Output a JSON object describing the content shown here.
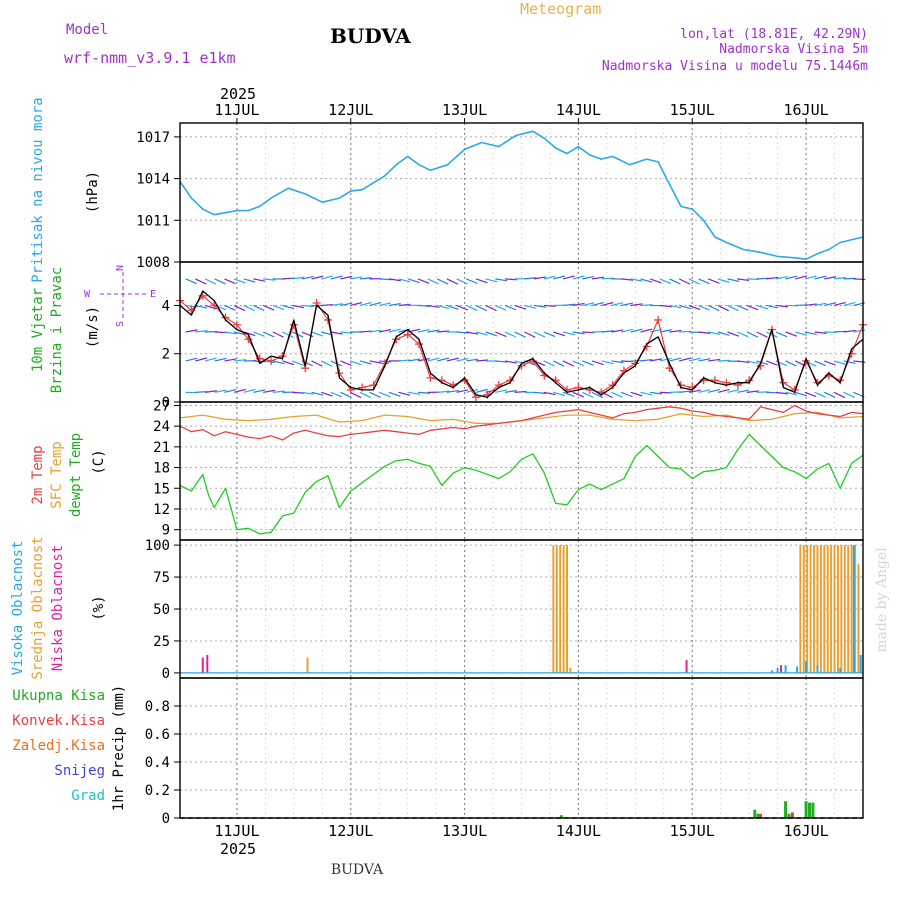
{
  "header": {
    "title": "BUDVA",
    "subtitle": "Meteogram",
    "model_label": "Model",
    "model_name": "wrf-nmm_v3.9.1 e1km",
    "coords": "lon,lat (18.81E, 42.29N)",
    "elevation": "Nadmorska Visina 5m",
    "model_elevation": "Nadmorska Visina u modelu 75.1446m",
    "footer_title": "BUDVA",
    "watermark": "made by Angel"
  },
  "time_axis": {
    "year": "2025",
    "days": [
      "11JUL",
      "12JUL",
      "13JUL",
      "14JUL",
      "15JUL",
      "16JUL"
    ],
    "day_start": [
      10.5,
      11,
      12,
      13,
      14,
      15,
      16,
      16.5
    ]
  },
  "colors": {
    "pressure": "#2aa8e8",
    "t2m": "#e84040",
    "sfc": "#e8a030",
    "dewpt": "#22cc22",
    "wind_speed": "#000000",
    "wind_cross": "#e84040",
    "high_cloud": "#2aa8e8",
    "mid_cloud": "#e8a030",
    "low_cloud": "#e020a0",
    "total_precip": "#22aa22",
    "conv_precip": "#e84040",
    "frozen_precip": "#e87020",
    "snow": "#4444dd",
    "hail": "#20c0c0",
    "purple_text": "#a030d0"
  },
  "chart_data": [
    {
      "type": "line",
      "panel": "pressure",
      "ylabel": "(hPa)",
      "side_label": "Pritisak na nivou mora",
      "ylim": [
        1008,
        1018
      ],
      "yticks": [
        1008,
        1011,
        1014,
        1017
      ],
      "series": [
        {
          "color_key": "pressure",
          "x": [
            10.5,
            10.6,
            10.7,
            10.8,
            11.0,
            11.1,
            11.2,
            11.3,
            11.45,
            11.6,
            11.75,
            11.9,
            12.0,
            12.1,
            12.2,
            12.3,
            12.4,
            12.5,
            12.6,
            12.7,
            12.85,
            13.0,
            13.15,
            13.3,
            13.45,
            13.6,
            13.7,
            13.8,
            13.9,
            14.0,
            14.1,
            14.2,
            14.3,
            14.45,
            14.6,
            14.7,
            14.8,
            14.9,
            15.0,
            15.1,
            15.2,
            15.3,
            15.45,
            15.6,
            15.75,
            15.9,
            16.0,
            16.1,
            16.2,
            16.3,
            16.5
          ],
          "y": [
            1013.8,
            1012.6,
            1011.8,
            1011.4,
            1011.7,
            1011.7,
            1012.0,
            1012.6,
            1013.3,
            1012.9,
            1012.3,
            1012.6,
            1013.1,
            1013.2,
            1013.7,
            1014.2,
            1015.0,
            1015.6,
            1015.0,
            1014.6,
            1015.0,
            1016.1,
            1016.6,
            1016.3,
            1017.1,
            1017.4,
            1016.9,
            1016.2,
            1015.8,
            1016.3,
            1015.7,
            1015.4,
            1015.6,
            1015.0,
            1015.4,
            1015.2,
            1013.6,
            1012.0,
            1011.8,
            1011.0,
            1009.8,
            1009.4,
            1008.9,
            1008.7,
            1008.4,
            1008.3,
            1008.2,
            1008.6,
            1008.9,
            1009.4,
            1009.8
          ]
        }
      ]
    },
    {
      "type": "line",
      "panel": "wind",
      "ylabel": "(m/s)",
      "side_label": [
        "10m Vjetar",
        "Brzina i Pravac"
      ],
      "compass": [
        "N",
        "E",
        "S",
        "W"
      ],
      "ylim": [
        0,
        5.8
      ],
      "yticks": [
        0,
        2,
        4
      ],
      "series": [
        {
          "color_key": "wind_speed",
          "x": [
            10.5,
            10.6,
            10.7,
            10.8,
            10.9,
            11.0,
            11.1,
            11.2,
            11.3,
            11.4,
            11.5,
            11.6,
            11.7,
            11.8,
            11.9,
            12.0,
            12.1,
            12.2,
            12.3,
            12.4,
            12.5,
            12.6,
            12.7,
            12.8,
            12.9,
            13.0,
            13.1,
            13.2,
            13.3,
            13.4,
            13.5,
            13.6,
            13.7,
            13.8,
            13.9,
            14.0,
            14.1,
            14.2,
            14.3,
            14.4,
            14.5,
            14.6,
            14.7,
            14.8,
            14.9,
            15.0,
            15.1,
            15.2,
            15.3,
            15.4,
            15.5,
            15.6,
            15.7,
            15.8,
            15.9,
            16.0,
            16.1,
            16.2,
            16.3,
            16.4,
            16.5
          ],
          "y": [
            4.0,
            3.6,
            4.6,
            4.2,
            3.4,
            3.0,
            2.8,
            1.6,
            1.9,
            1.8,
            3.4,
            1.5,
            4.0,
            3.6,
            1.0,
            0.6,
            0.5,
            0.5,
            1.5,
            2.7,
            3.0,
            2.6,
            1.2,
            0.8,
            0.6,
            1.0,
            0.3,
            0.2,
            0.6,
            0.8,
            1.6,
            1.8,
            1.2,
            0.8,
            0.4,
            0.5,
            0.6,
            0.3,
            0.6,
            1.2,
            1.5,
            2.4,
            2.7,
            1.6,
            0.6,
            0.5,
            1.0,
            0.8,
            0.7,
            0.8,
            0.8,
            1.6,
            3.0,
            0.6,
            0.4,
            1.8,
            0.7,
            1.2,
            0.8,
            2.2,
            2.6
          ]
        },
        {
          "color_key": "wind_cross",
          "x": [
            10.5,
            10.6,
            10.7,
            10.8,
            10.9,
            11.0,
            11.1,
            11.2,
            11.3,
            11.4,
            11.5,
            11.6,
            11.7,
            11.8,
            11.9,
            12.0,
            12.1,
            12.2,
            12.3,
            12.4,
            12.5,
            12.6,
            12.7,
            12.8,
            12.9,
            13.0,
            13.1,
            13.2,
            13.3,
            13.4,
            13.5,
            13.6,
            13.7,
            13.8,
            13.9,
            14.0,
            14.1,
            14.2,
            14.3,
            14.4,
            14.5,
            14.6,
            14.7,
            14.8,
            14.9,
            15.0,
            15.1,
            15.2,
            15.3,
            15.4,
            15.5,
            15.6,
            15.7,
            15.8,
            15.9,
            16.0,
            16.1,
            16.2,
            16.3,
            16.4,
            16.5
          ],
          "y": [
            4.2,
            3.8,
            4.4,
            4.0,
            3.5,
            3.2,
            2.6,
            1.8,
            1.7,
            1.9,
            3.2,
            1.4,
            4.1,
            3.4,
            1.2,
            0.5,
            0.6,
            0.7,
            1.6,
            2.6,
            2.8,
            2.4,
            1.0,
            0.9,
            0.7,
            0.9,
            0.2,
            0.3,
            0.7,
            0.9,
            1.5,
            1.7,
            1.1,
            0.9,
            0.5,
            0.6,
            0.5,
            0.4,
            0.7,
            1.3,
            1.6,
            2.3,
            3.4,
            1.4,
            0.7,
            0.6,
            0.9,
            0.9,
            0.8,
            0.7,
            0.9,
            1.5,
            3.0,
            0.8,
            0.5,
            1.7,
            0.8,
            1.1,
            0.9,
            2.0,
            3.2
          ]
        }
      ]
    },
    {
      "type": "line",
      "panel": "temperature",
      "ylabel": "(C)",
      "side_label": [
        "2m Temp",
        "SFC Temp",
        "dewpt Temp"
      ],
      "ylim": [
        7.5,
        27.5
      ],
      "yticks": [
        9,
        12,
        15,
        18,
        21,
        24,
        27
      ],
      "series": [
        {
          "color_key": "t2m",
          "x": [
            10.5,
            10.6,
            10.7,
            10.8,
            10.9,
            11.0,
            11.1,
            11.2,
            11.3,
            11.4,
            11.5,
            11.6,
            11.7,
            11.8,
            11.9,
            12.0,
            12.1,
            12.2,
            12.3,
            12.4,
            12.5,
            12.6,
            12.7,
            12.8,
            12.9,
            13.0,
            13.1,
            13.2,
            13.3,
            13.4,
            13.5,
            13.6,
            13.7,
            13.8,
            13.9,
            14.0,
            14.1,
            14.2,
            14.3,
            14.4,
            14.5,
            14.6,
            14.7,
            14.8,
            14.9,
            15.0,
            15.1,
            15.2,
            15.3,
            15.4,
            15.5,
            15.6,
            15.7,
            15.8,
            15.9,
            16.0,
            16.1,
            16.2,
            16.3,
            16.4,
            16.5
          ],
          "y": [
            24.0,
            23.2,
            23.5,
            22.6,
            23.2,
            22.8,
            22.4,
            22.2,
            22.6,
            22.0,
            23.0,
            23.4,
            23.0,
            22.6,
            22.5,
            22.8,
            23.0,
            23.2,
            23.4,
            23.2,
            23.0,
            22.8,
            23.4,
            23.6,
            23.8,
            23.6,
            24.0,
            24.2,
            24.4,
            24.6,
            24.8,
            25.2,
            25.6,
            26.0,
            26.2,
            26.4,
            26.0,
            25.6,
            25.2,
            25.8,
            26.0,
            26.4,
            26.6,
            26.8,
            26.6,
            26.2,
            26.0,
            25.6,
            25.4,
            25.2,
            25.0,
            26.8,
            26.4,
            26.0,
            27.0,
            26.2,
            25.8,
            25.6,
            25.4,
            26.0,
            25.8
          ]
        },
        {
          "color_key": "sfc",
          "x": [
            10.5,
            10.7,
            10.9,
            11.1,
            11.3,
            11.5,
            11.7,
            11.9,
            12.1,
            12.3,
            12.5,
            12.7,
            12.9,
            13.1,
            13.3,
            13.5,
            13.7,
            13.9,
            14.1,
            14.3,
            14.5,
            14.7,
            14.9,
            15.1,
            15.3,
            15.5,
            15.7,
            15.9,
            16.1,
            16.3,
            16.5
          ],
          "y": [
            25.2,
            25.6,
            25.0,
            24.8,
            25.0,
            25.4,
            25.6,
            24.6,
            24.8,
            25.6,
            25.4,
            24.8,
            25.0,
            24.4,
            24.4,
            24.8,
            25.2,
            25.6,
            25.6,
            25.0,
            24.8,
            25.0,
            25.8,
            25.4,
            25.6,
            24.8,
            25.0,
            25.8,
            26.0,
            25.2,
            25.4
          ]
        },
        {
          "color_key": "dewpt",
          "x": [
            10.5,
            10.6,
            10.7,
            10.75,
            10.8,
            10.9,
            11.0,
            11.1,
            11.2,
            11.3,
            11.4,
            11.5,
            11.6,
            11.7,
            11.8,
            11.9,
            12.0,
            12.1,
            12.2,
            12.3,
            12.4,
            12.5,
            12.6,
            12.7,
            12.8,
            12.9,
            13.0,
            13.1,
            13.2,
            13.3,
            13.4,
            13.5,
            13.6,
            13.7,
            13.8,
            13.9,
            14.0,
            14.1,
            14.2,
            14.3,
            14.4,
            14.5,
            14.6,
            14.7,
            14.8,
            14.9,
            15.0,
            15.1,
            15.2,
            15.3,
            15.4,
            15.5,
            15.6,
            15.7,
            15.8,
            15.9,
            16.0,
            16.1,
            16.2,
            16.3,
            16.4,
            16.5
          ],
          "y": [
            15.4,
            14.6,
            17.0,
            14.0,
            12.2,
            15.0,
            9.0,
            9.2,
            8.4,
            8.6,
            11.0,
            11.4,
            14.4,
            16.0,
            16.8,
            12.2,
            14.6,
            15.8,
            17.0,
            18.2,
            19.0,
            19.2,
            18.6,
            18.2,
            15.4,
            17.2,
            18.0,
            17.6,
            17.0,
            16.4,
            17.4,
            19.2,
            20.0,
            17.2,
            12.8,
            12.6,
            14.8,
            15.6,
            14.8,
            15.6,
            16.4,
            19.6,
            21.2,
            19.6,
            18.0,
            17.8,
            16.4,
            17.4,
            17.6,
            18.0,
            20.6,
            22.8,
            21.2,
            19.6,
            18.0,
            17.4,
            16.4,
            17.8,
            18.6,
            15.0,
            18.6,
            19.8
          ]
        }
      ]
    },
    {
      "type": "bar",
      "panel": "cloud",
      "ylabel": "(%)",
      "side_label": [
        "Visoka Oblacnost",
        "Srednja Oblacnost",
        "Niska Oblacnost"
      ],
      "ylim": [
        -4,
        104
      ],
      "yticks": [
        0,
        25,
        50,
        75,
        100
      ],
      "series": [
        {
          "color_key": "mid_cloud",
          "x": [
            13.78,
            13.81,
            13.84,
            13.87,
            13.9,
            13.93,
            11.62,
            15.95,
            15.98,
            16.01,
            16.04,
            16.07,
            16.1,
            16.13,
            16.16,
            16.19,
            16.22,
            16.25,
            16.28,
            16.31,
            16.34,
            16.37,
            16.4,
            16.43,
            16.46
          ],
          "y": [
            100,
            100,
            100,
            100,
            100,
            4,
            12,
            100,
            100,
            100,
            100,
            100,
            100,
            100,
            100,
            100,
            100,
            100,
            100,
            100,
            100,
            100,
            100,
            100,
            85
          ]
        },
        {
          "color_key": "high_cloud",
          "x": [
            15.7,
            15.75,
            15.82,
            15.92,
            16.0,
            16.1,
            16.3,
            16.42,
            16.48
          ],
          "y": [
            2,
            4,
            6,
            5,
            9,
            6,
            4,
            100,
            14
          ]
        },
        {
          "color_key": "low_cloud",
          "x": [
            10.7,
            10.74,
            14.95,
            15.78
          ],
          "y": [
            12,
            14,
            10,
            6
          ]
        }
      ]
    },
    {
      "type": "bar",
      "panel": "precip",
      "ylabel": "1hr Precip (mm)",
      "side_label": [
        "Ukupna Kisa",
        "Konvek.Kisa",
        "Zaledj.Kisa",
        "Snijeg",
        "Grad"
      ],
      "ylim": [
        0,
        1.0
      ],
      "yticks": [
        0,
        0.2,
        0.4,
        0.6,
        0.8
      ],
      "series": [
        {
          "color_key": "total_precip",
          "x": [
            13.85,
            15.55,
            15.58,
            15.82,
            15.85,
            16.0,
            16.03,
            16.06
          ],
          "y": [
            0.02,
            0.06,
            0.03,
            0.12,
            0.03,
            0.12,
            0.11,
            0.11
          ]
        },
        {
          "color_key": "conv_precip",
          "x": [
            15.6,
            15.88
          ],
          "y": [
            0.03,
            0.04
          ]
        }
      ]
    }
  ]
}
